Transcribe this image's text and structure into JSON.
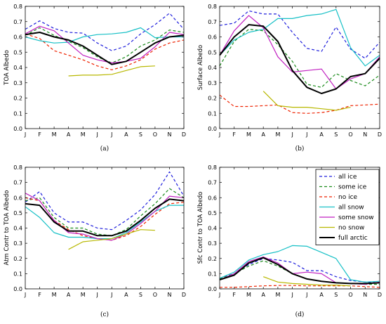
{
  "colors": {
    "all ice": "#1f1fdc",
    "some ice": "#1a8a1a",
    "no ice": "#ee2200",
    "all snow": "#17c0c6",
    "some snow": "#c020c0",
    "no snow": "#b8b800",
    "full arctic": "#000000"
  },
  "legend": {
    "position": "top-right of panel (d)",
    "entries": [
      {
        "name": "all ice",
        "style": "dashed"
      },
      {
        "name": "some ice",
        "style": "dashed"
      },
      {
        "name": "no ice",
        "style": "dashed"
      },
      {
        "name": "all snow",
        "style": "solid"
      },
      {
        "name": "some snow",
        "style": "solid"
      },
      {
        "name": "no snow",
        "style": "solid"
      },
      {
        "name": "full arctic",
        "style": "solid-thick"
      }
    ]
  },
  "chart_data": [
    {
      "type": "line",
      "panel": "(a)",
      "caption": "(a)",
      "ylabel": "TOA Albedo",
      "categories": [
        "J",
        "F",
        "M",
        "A",
        "M",
        "J",
        "J",
        "A",
        "S",
        "O",
        "N",
        "D"
      ],
      "ylim": [
        0.0,
        0.8
      ],
      "yticks": [
        "0.0",
        "0.1",
        "0.2",
        "0.3",
        "0.4",
        "0.5",
        "0.6",
        "0.7",
        "0.8"
      ],
      "grid": false,
      "series": [
        {
          "name": "all ice",
          "values": [
            0.65,
            0.705,
            0.655,
            0.63,
            0.625,
            0.56,
            0.51,
            0.54,
            0.62,
            0.68,
            0.755,
            0.65
          ]
        },
        {
          "name": "some ice",
          "values": [
            0.61,
            0.66,
            0.61,
            0.57,
            0.53,
            0.47,
            0.43,
            0.47,
            0.54,
            0.58,
            0.645,
            0.63
          ]
        },
        {
          "name": "no ice",
          "values": [
            0.62,
            0.59,
            0.51,
            0.48,
            0.45,
            0.41,
            0.385,
            0.41,
            0.45,
            0.52,
            0.56,
            0.58
          ]
        },
        {
          "name": "all snow",
          "values": [
            0.6,
            0.575,
            0.56,
            0.565,
            0.6,
            0.615,
            0.62,
            0.63,
            0.66,
            0.595,
            0.6,
            0.6
          ]
        },
        {
          "name": "some snow",
          "values": [
            0.62,
            0.67,
            0.64,
            0.56,
            0.48,
            0.45,
            0.43,
            0.44,
            0.46,
            0.535,
            0.63,
            0.615
          ]
        },
        {
          "name": "no snow",
          "values": [
            null,
            null,
            null,
            0.345,
            0.35,
            0.35,
            0.355,
            0.38,
            0.405,
            0.41,
            null,
            null
          ]
        },
        {
          "name": "full arctic",
          "values": [
            0.615,
            0.63,
            0.6,
            0.58,
            0.54,
            0.48,
            0.42,
            0.44,
            0.5,
            0.56,
            0.6,
            0.61
          ]
        }
      ]
    },
    {
      "type": "line",
      "panel": "(b)",
      "caption": "(b)",
      "ylabel": "Surface Albedo",
      "categories": [
        "J",
        "F",
        "M",
        "A",
        "M",
        "J",
        "J",
        "A",
        "S",
        "O",
        "N",
        "D"
      ],
      "ylim": [
        0.0,
        0.8
      ],
      "yticks": [
        "0.0",
        "0.1",
        "0.2",
        "0.3",
        "0.4",
        "0.5",
        "0.6",
        "0.7",
        "0.8"
      ],
      "grid": false,
      "series": [
        {
          "name": "all ice",
          "values": [
            0.675,
            0.69,
            0.77,
            0.75,
            0.75,
            0.63,
            0.525,
            0.505,
            0.665,
            0.52,
            0.46,
            0.565
          ]
        },
        {
          "name": "some ice",
          "values": [
            0.41,
            0.57,
            0.65,
            0.64,
            0.55,
            0.44,
            0.29,
            0.27,
            0.36,
            0.315,
            0.28,
            0.35
          ]
        },
        {
          "name": "no ice",
          "values": [
            0.22,
            0.145,
            0.145,
            0.15,
            0.155,
            0.105,
            0.1,
            0.105,
            0.12,
            0.15,
            0.155,
            0.16
          ]
        },
        {
          "name": "all snow",
          "values": [
            0.48,
            0.58,
            0.63,
            0.65,
            0.72,
            0.72,
            0.74,
            0.75,
            0.78,
            0.53,
            0.41,
            0.48
          ]
        },
        {
          "name": "some snow",
          "values": [
            0.48,
            0.64,
            0.74,
            0.66,
            0.47,
            0.37,
            0.38,
            0.39,
            0.26,
            0.325,
            0.36,
            0.47
          ]
        },
        {
          "name": "no snow",
          "values": [
            null,
            null,
            null,
            0.245,
            0.15,
            0.14,
            0.14,
            0.13,
            0.12,
            0.14,
            null,
            null
          ]
        },
        {
          "name": "full arctic",
          "values": [
            0.48,
            0.6,
            0.68,
            0.67,
            0.57,
            0.38,
            0.27,
            0.23,
            0.26,
            0.34,
            0.36,
            0.46
          ]
        }
      ]
    },
    {
      "type": "line",
      "panel": "(c)",
      "caption": "(c)",
      "ylabel": "Atm Contr to TOA Albedo",
      "categories": [
        "J",
        "F",
        "M",
        "A",
        "M",
        "J",
        "J",
        "A",
        "S",
        "O",
        "N",
        "D"
      ],
      "ylim": [
        0.0,
        0.8
      ],
      "yticks": [
        "0.0",
        "0.1",
        "0.2",
        "0.3",
        "0.4",
        "0.5",
        "0.6",
        "0.7",
        "0.8"
      ],
      "grid": false,
      "series": [
        {
          "name": "all ice",
          "values": [
            0.57,
            0.64,
            0.5,
            0.44,
            0.44,
            0.4,
            0.39,
            0.45,
            0.52,
            0.62,
            0.77,
            0.61
          ]
        },
        {
          "name": "some ice",
          "values": [
            0.58,
            0.6,
            0.47,
            0.4,
            0.4,
            0.36,
            0.35,
            0.39,
            0.48,
            0.56,
            0.66,
            0.6
          ]
        },
        {
          "name": "no ice",
          "values": [
            0.6,
            0.58,
            0.45,
            0.39,
            0.35,
            0.33,
            0.32,
            0.35,
            0.41,
            0.49,
            0.56,
            0.57
          ]
        },
        {
          "name": "all snow",
          "values": [
            0.54,
            0.47,
            0.37,
            0.34,
            0.34,
            0.33,
            0.33,
            0.37,
            0.44,
            0.51,
            0.55,
            0.55
          ]
        },
        {
          "name": "some snow",
          "values": [
            0.63,
            0.58,
            0.45,
            0.37,
            0.36,
            0.33,
            0.32,
            0.36,
            0.43,
            0.51,
            0.61,
            0.6
          ]
        },
        {
          "name": "no snow",
          "values": [
            null,
            null,
            null,
            0.26,
            0.31,
            0.32,
            0.33,
            0.36,
            0.39,
            0.385,
            null,
            null
          ]
        },
        {
          "name": "full arctic",
          "values": [
            0.56,
            0.55,
            0.44,
            0.38,
            0.38,
            0.35,
            0.35,
            0.38,
            0.45,
            0.53,
            0.59,
            0.58
          ]
        }
      ]
    },
    {
      "type": "line",
      "panel": "(d)",
      "caption": "(d)",
      "ylabel": "Sfc Contr to TOA Albedo",
      "categories": [
        "J",
        "F",
        "M",
        "A",
        "M",
        "J",
        "J",
        "A",
        "S",
        "O",
        "N",
        "D"
      ],
      "ylim": [
        0.0,
        0.8
      ],
      "yticks": [
        "0.0",
        "0.1",
        "0.2",
        "0.3",
        "0.4",
        "0.5",
        "0.6",
        "0.7",
        "0.8"
      ],
      "grid": false,
      "series": [
        {
          "name": "all ice",
          "values": [
            0.07,
            0.1,
            0.16,
            0.2,
            0.19,
            0.175,
            0.12,
            0.12,
            0.08,
            0.055,
            0.045,
            0.04
          ]
        },
        {
          "name": "some ice",
          "values": [
            0.065,
            0.1,
            0.15,
            0.185,
            0.15,
            0.1,
            0.065,
            0.05,
            0.04,
            0.035,
            0.03,
            0.03
          ]
        },
        {
          "name": "no ice",
          "values": [
            0.01,
            0.01,
            0.015,
            0.02,
            0.022,
            0.022,
            0.02,
            0.02,
            0.02,
            0.02,
            0.015,
            0.01
          ]
        },
        {
          "name": "all snow",
          "values": [
            0.07,
            0.11,
            0.19,
            0.225,
            0.245,
            0.285,
            0.28,
            0.24,
            0.2,
            0.06,
            0.045,
            0.05
          ]
        },
        {
          "name": "some snow",
          "values": [
            0.06,
            0.1,
            0.18,
            0.21,
            0.17,
            0.1,
            0.11,
            0.1,
            0.04,
            0.035,
            0.03,
            0.045
          ]
        },
        {
          "name": "no snow",
          "values": [
            null,
            null,
            null,
            0.08,
            0.045,
            0.035,
            0.03,
            0.025,
            0.025,
            0.02,
            null,
            null
          ]
        },
        {
          "name": "full arctic",
          "values": [
            0.06,
            0.09,
            0.17,
            0.205,
            0.16,
            0.1,
            0.065,
            0.05,
            0.04,
            0.035,
            0.035,
            0.04
          ]
        }
      ]
    }
  ]
}
